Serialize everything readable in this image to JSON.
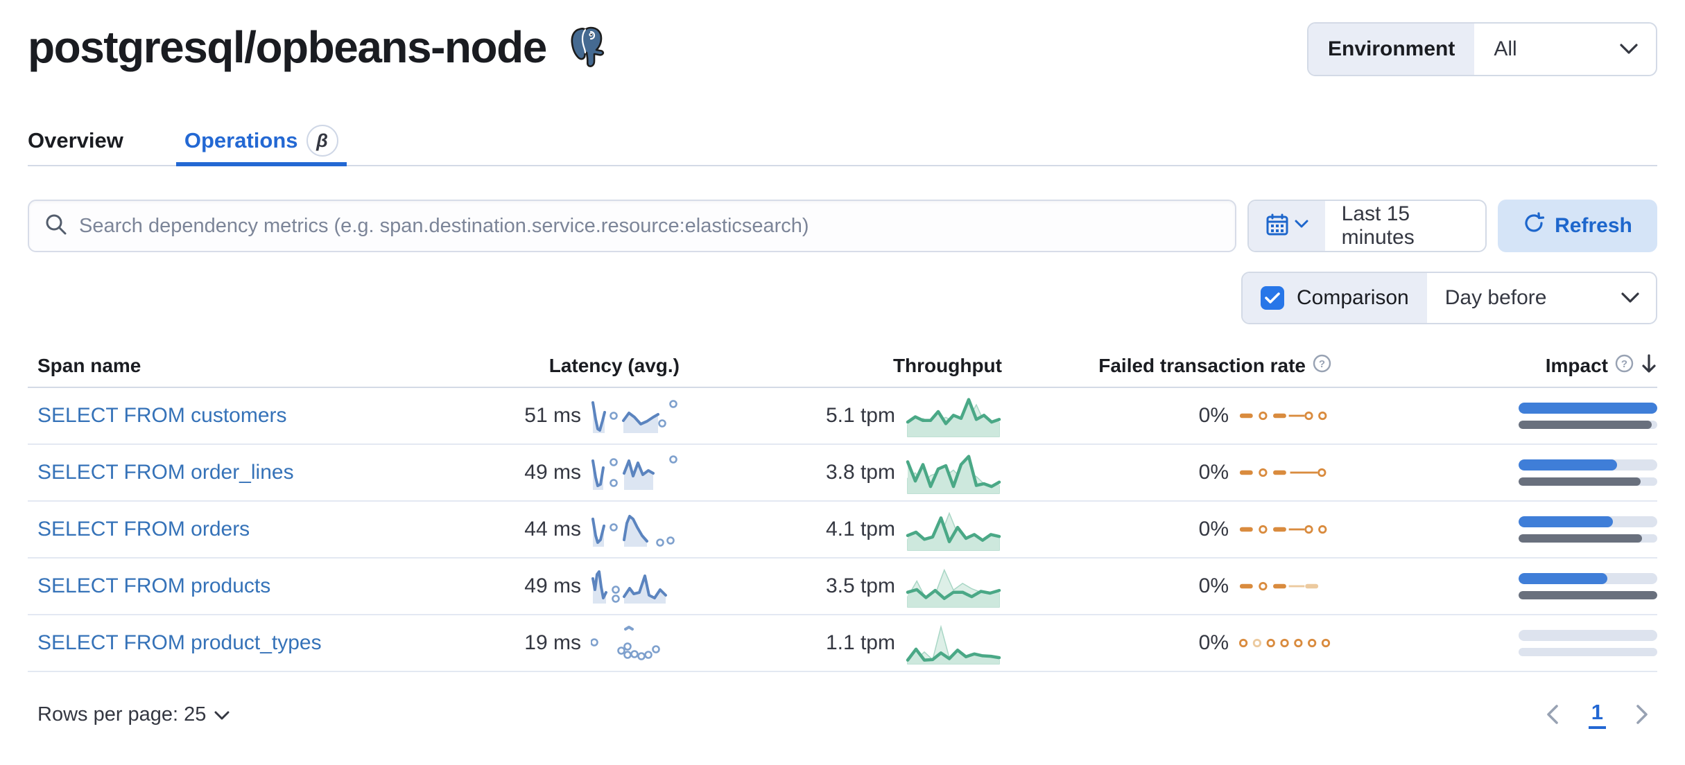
{
  "page": {
    "title": "postgresql/opbeans-node"
  },
  "environment": {
    "label": "Environment",
    "value": "All"
  },
  "tabs": [
    {
      "label": "Overview",
      "active": false
    },
    {
      "label": "Operations",
      "active": true,
      "badge": "β"
    }
  ],
  "toolbar": {
    "search_placeholder": "Search dependency metrics (e.g. span.destination.service.resource:elasticsearch)",
    "time_range": "Last 15 minutes",
    "refresh_label": "Refresh",
    "comparison_label": "Comparison",
    "comparison_value": "Day before"
  },
  "table": {
    "columns": [
      "Span name",
      "Latency (avg.)",
      "Throughput",
      "Failed transaction rate",
      "Impact"
    ],
    "rows": [
      {
        "span_name": "SELECT FROM customers",
        "latency": "51 ms",
        "throughput": "5.1 tpm",
        "failed_rate": "0%",
        "impact": {
          "current": 100,
          "previous": 96
        },
        "latency_spark": {
          "segments": [
            {
              "pts": [
                [
                  3,
                  10
                ],
                [
                  7,
                  34
                ],
                [
                  10,
                  48
                ],
                [
                  13,
                  50
                ],
                [
                  17,
                  36
                ],
                [
                  20,
                  24
                ]
              ],
              "fill": true
            },
            {
              "pts": [
                [
                  47,
                  36
                ],
                [
                  55,
                  25
                ],
                [
                  63,
                  31
                ],
                [
                  72,
                  41
                ],
                [
                  81,
                  37
                ],
                [
                  90,
                  31
                ],
                [
                  97,
                  27
                ]
              ],
              "fill": true
            }
          ],
          "markers": [
            [
              33,
              29
            ],
            [
              103,
              40
            ],
            [
              119,
              12
            ]
          ]
        },
        "throughput_spark": {
          "current": [
            2.5,
            3.5,
            2.8,
            2.8,
            4.5,
            2.2,
            3.8,
            3.2,
            6.8,
            3.0,
            3.8,
            2.5,
            3.0
          ],
          "previous": [
            2.0,
            2.5,
            3.2,
            2.4,
            2.8,
            3.4,
            2.6,
            3.0,
            3.2,
            5.8,
            2.6,
            2.0,
            2.4
          ]
        },
        "failed_spark": [
          {
            "k": "dash"
          },
          {
            "k": "dot"
          },
          {
            "k": "dash"
          },
          {
            "k": "line"
          },
          {
            "k": "dot"
          },
          {
            "k": "dot"
          }
        ]
      },
      {
        "span_name": "SELECT FROM order_lines",
        "latency": "49 ms",
        "throughput": "3.8 tpm",
        "failed_rate": "0%",
        "impact": {
          "current": 71,
          "previous": 88
        },
        "latency_spark": {
          "segments": [
            {
              "pts": [
                [
                  3,
                  12
                ],
                [
                  7,
                  36
                ],
                [
                  10,
                  48
                ],
                [
                  14,
                  46
                ],
                [
                  18,
                  22
                ]
              ],
              "fill": true
            },
            {
              "pts": [
                [
                  48,
                  30
                ],
                [
                  55,
                  12
                ],
                [
                  61,
                  34
                ],
                [
                  68,
                  15
                ],
                [
                  75,
                  32
                ],
                [
                  83,
                  26
                ],
                [
                  90,
                  30
                ]
              ],
              "fill": true
            }
          ],
          "markers": [
            [
              33,
              14
            ],
            [
              33,
              44
            ],
            [
              119,
              10
            ]
          ]
        },
        "throughput_spark": {
          "current": [
            5.5,
            2.0,
            5.0,
            1.0,
            4.2,
            4.8,
            1.0,
            5.0,
            6.5,
            1.2,
            1.5,
            1.0,
            1.8
          ],
          "previous": [
            2.5,
            3.5,
            1.5,
            3.0,
            3.5,
            3.0,
            4.0,
            2.5,
            3.5,
            2.8,
            1.5,
            1.0,
            1.2
          ]
        },
        "failed_spark": [
          {
            "k": "dash"
          },
          {
            "k": "dot"
          },
          {
            "k": "dash"
          },
          {
            "k": "longline"
          },
          {
            "k": "dot"
          }
        ]
      },
      {
        "span_name": "SELECT FROM orders",
        "latency": "44 ms",
        "throughput": "4.1 tpm",
        "failed_rate": "0%",
        "impact": {
          "current": 68,
          "previous": 89
        },
        "latency_spark": {
          "segments": [
            {
              "pts": [
                [
                  3,
                  14
                ],
                [
                  7,
                  38
                ],
                [
                  10,
                  48
                ],
                [
                  14,
                  44
                ],
                [
                  19,
                  24
                ]
              ],
              "fill": true
            },
            {
              "pts": [
                [
                  48,
                  44
                ],
                [
                  52,
                  20
                ],
                [
                  56,
                  10
                ],
                [
                  61,
                  14
                ],
                [
                  67,
                  26
                ],
                [
                  74,
                  38
                ],
                [
                  81,
                  46
                ]
              ],
              "fill": true
            }
          ],
          "markers": [
            [
              33,
              26
            ],
            [
              100,
              48
            ],
            [
              115,
              45
            ]
          ]
        },
        "throughput_spark": {
          "current": [
            2.8,
            3.5,
            2.0,
            2.5,
            6.5,
            1.5,
            4.5,
            2.2,
            3.0,
            1.8,
            3.0,
            2.6
          ],
          "previous": [
            2.0,
            2.8,
            2.0,
            2.5,
            3.0,
            7.5,
            3.2,
            2.5,
            2.0,
            1.5,
            2.0,
            2.2
          ]
        },
        "failed_spark": [
          {
            "k": "dash"
          },
          {
            "k": "dot"
          },
          {
            "k": "dash"
          },
          {
            "k": "line"
          },
          {
            "k": "dot"
          },
          {
            "k": "dot"
          }
        ]
      },
      {
        "span_name": "SELECT FROM products",
        "latency": "49 ms",
        "throughput": "3.5 tpm",
        "failed_rate": "0%",
        "impact": {
          "current": 64,
          "previous": 100
        },
        "latency_spark": {
          "segments": [
            {
              "pts": [
                [
                  3,
                  18
                ],
                [
                  6,
                  34
                ],
                [
                  9,
                  12
                ],
                [
                  12,
                  8
                ],
                [
                  15,
                  30
                ],
                [
                  18,
                  46
                ],
                [
                  22,
                  38
                ]
              ],
              "fill": true
            },
            {
              "pts": [
                [
                  48,
                  44
                ],
                [
                  56,
                  32
                ],
                [
                  62,
                  40
                ],
                [
                  70,
                  38
                ],
                [
                  78,
                  14
                ],
                [
                  84,
                  42
                ],
                [
                  92,
                  46
                ],
                [
                  100,
                  34
                ],
                [
                  108,
                  42
                ]
              ],
              "fill": true
            }
          ],
          "markers": [
            [
              36,
              34
            ],
            [
              36,
              47
            ]
          ]
        },
        "throughput_spark": {
          "current": [
            3.0,
            3.6,
            1.8,
            3.4,
            1.6,
            3.0,
            3.0,
            2.0,
            3.2,
            2.8,
            3.4
          ],
          "previous": [
            2.0,
            5.5,
            1.5,
            2.5,
            8.0,
            3.5,
            5.0,
            3.8,
            3.0,
            2.5,
            2.8
          ]
        },
        "failed_spark": [
          {
            "k": "dash"
          },
          {
            "k": "dot"
          },
          {
            "k": "dash"
          },
          {
            "k": "line",
            "light": true
          },
          {
            "k": "dash",
            "light": true
          }
        ]
      },
      {
        "span_name": "SELECT FROM product_types",
        "latency": "19 ms",
        "throughput": "1.1 tpm",
        "failed_rate": "0%",
        "impact": {
          "current": 0,
          "previous": 0
        },
        "latency_spark": {
          "segments": [
            {
              "pts": [
                [
                  50,
                  9
                ],
                [
                  55,
                  6
                ],
                [
                  60,
                  9
                ]
              ],
              "fill": false,
              "light": true
            }
          ],
          "markers": [
            [
              5,
              28
            ],
            [
              44,
              40
            ],
            [
              53,
              34
            ],
            [
              53,
              46
            ],
            [
              63,
              45
            ],
            [
              73,
              48
            ],
            [
              83,
              46
            ],
            [
              94,
              38
            ]
          ]
        },
        "throughput_spark": {
          "current": [
            0.5,
            2.8,
            0.5,
            0.6,
            2.0,
            0.8,
            2.6,
            1.2,
            1.8,
            1.4,
            1.3,
            1.0
          ],
          "previous": [
            0.4,
            0.6,
            2.2,
            0.6,
            7.5,
            1.0,
            0.7,
            1.2,
            0.7,
            0.5,
            0.6,
            0.5
          ]
        },
        "failed_spark": [
          {
            "k": "dot"
          },
          {
            "k": "dot",
            "light": true
          },
          {
            "k": "dot"
          },
          {
            "k": "dot"
          },
          {
            "k": "dot"
          },
          {
            "k": "dot"
          },
          {
            "k": "dot"
          }
        ]
      }
    ]
  },
  "pagination": {
    "rows_per_page_label": "Rows per page: 25",
    "current_page": "1"
  },
  "colors": {
    "primary_blue": "#2368d3",
    "link_blue": "#3572b8",
    "latency_line": "#5b84bf",
    "latency_fill": "#dce5f2",
    "latency_marker": "#7ea0cd",
    "throughput_line": "#4aa886",
    "throughput_fill": "#cde8dd",
    "throughput_prev_fill": "#ddefe7",
    "throughput_prev_stroke": "#a8d6c5",
    "failed_orange": "#d98b3e",
    "failed_orange_light": "#ecca9f",
    "impact_bar": "#3f7ed8",
    "impact_prev_bar": "#69707d",
    "impact_track": "#dde3ee"
  }
}
